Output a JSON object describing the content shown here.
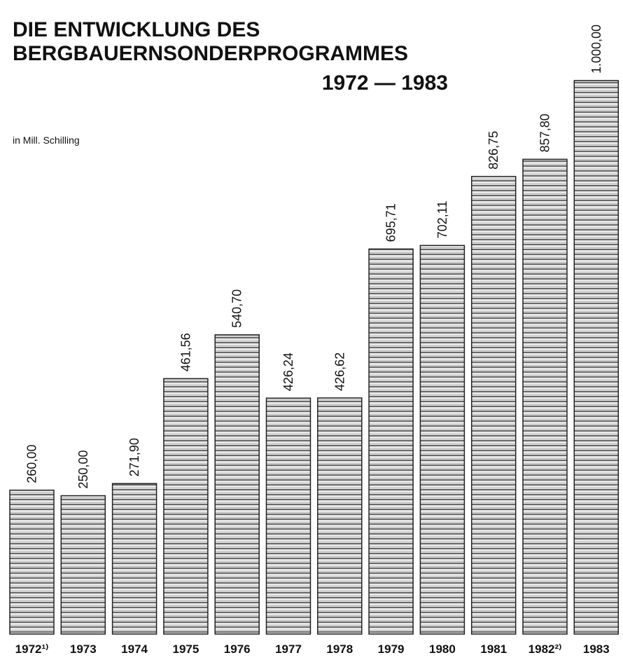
{
  "chart_data": {
    "type": "bar",
    "title": "DIE ENTWICKLUNG DES BERGBAUERNSONDERPROGRAMMES",
    "subtitle": "1972 — 1983",
    "unit_label": "in Mill. Schilling",
    "categories": [
      "1972¹⁾",
      "1973",
      "1974",
      "1975",
      "1976",
      "1977",
      "1978",
      "1979",
      "1980",
      "1981",
      "1982²⁾",
      "1983"
    ],
    "values": [
      260.0,
      250.0,
      271.9,
      461.56,
      540.7,
      426.24,
      426.62,
      695.71,
      702.11,
      826.75,
      857.8,
      1000.0
    ],
    "value_labels": [
      "260,00",
      "250,00",
      "271,90",
      "461,56",
      "540,70",
      "426,24",
      "426,62",
      "695,71",
      "702,11",
      "826,75",
      "857,80",
      "1.000,00"
    ],
    "color": "#d8d8d8"
  }
}
